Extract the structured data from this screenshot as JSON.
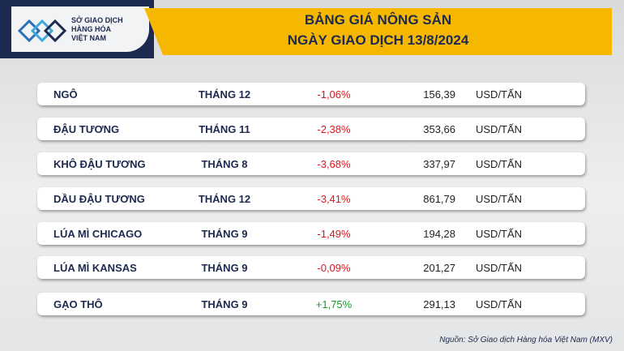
{
  "logo": {
    "lines": [
      "SỞ GIAO DỊCH",
      "HÀNG HÓA",
      "VIỆT NAM"
    ]
  },
  "header": {
    "title": "BẢNG GIÁ NÔNG SẢN",
    "subtitle": "NGÀY GIAO DỊCH 13/8/2024"
  },
  "table": {
    "rows": [
      [
        "NGÔ",
        "THÁNG 12",
        "-1,06%",
        "156,39",
        "USD/TẤN"
      ],
      [
        "ĐẬU TƯƠNG",
        "THÁNG 11",
        "-2,38%",
        "353,66",
        "USD/TẤN"
      ],
      [
        "KHÔ ĐẬU TƯƠNG",
        "THÁNG 8",
        "-3,68%",
        "337,97",
        "USD/TẤN"
      ],
      [
        "DẦU ĐẬU TƯƠNG",
        "THÁNG 12",
        "-3,41%",
        "861,79",
        "USD/TẤN"
      ],
      [
        "LÚA MÌ CHICAGO",
        "THÁNG 9",
        "-1,49%",
        "194,28",
        "USD/TẤN"
      ],
      [
        "LÚA MÌ KANSAS",
        "THÁNG 9",
        "-0,09%",
        "201,27",
        "USD/TẤN"
      ],
      [
        "GẠO THÔ",
        "THÁNG 9",
        "+1,75%",
        "291,13",
        "USD/TẤN"
      ]
    ]
  },
  "source": "Nguồn: Sở Giao dịch Hàng hóa Việt Nam (MXV)"
}
